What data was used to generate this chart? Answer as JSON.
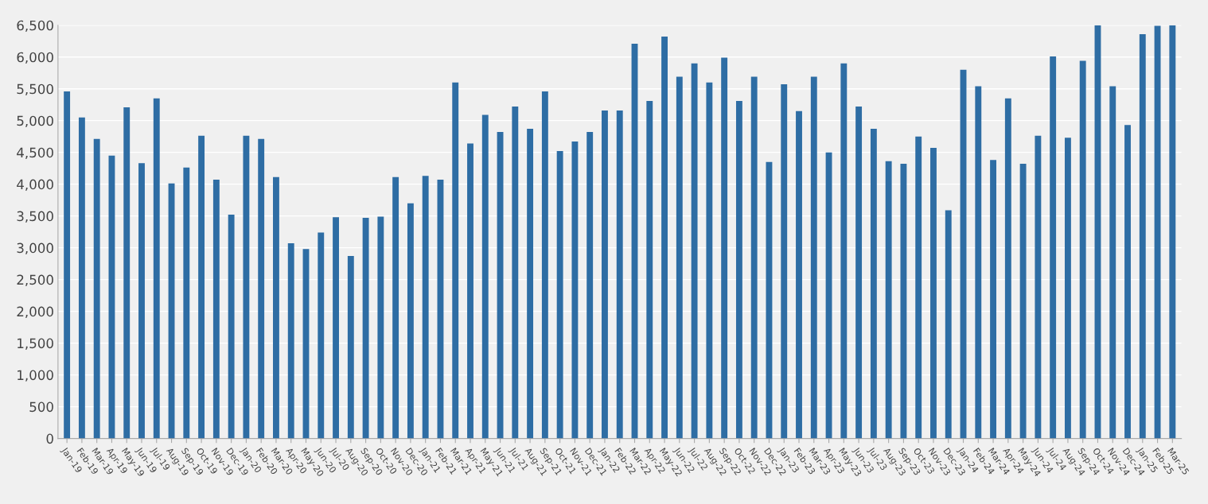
{
  "chart_data": {
    "type": "bar",
    "categories": [
      "Jan-19",
      "Feb-19",
      "Mar-19",
      "Apr-19",
      "May-19",
      "Jun-19",
      "Jul-19",
      "Aug-19",
      "Sep-19",
      "Oct-19",
      "Nov-19",
      "Dec-19",
      "Jan-20",
      "Feb-20",
      "Mar-20",
      "Apr-20",
      "May-20",
      "Jun-20",
      "Jul-20",
      "Aug-20",
      "Sep-20",
      "Oct-20",
      "Nov-20",
      "Dec-20",
      "Jan-21",
      "Feb-21",
      "Mar-21",
      "Apr-21",
      "May-21",
      "Jun-21",
      "Jul-21",
      "Aug-21",
      "Sep-21",
      "Oct-21",
      "Nov-21",
      "Dec-21",
      "Jan-22",
      "Feb-22",
      "Mar-22",
      "Apr-22",
      "May-22",
      "Jun-22",
      "Jul-22",
      "Aug-22",
      "Sep-22",
      "Oct-22",
      "Nov-22",
      "Dec-22",
      "Jan-23",
      "Feb-23",
      "Mar-23",
      "Apr-23",
      "May-23",
      "Jun-23",
      "Jul-23",
      "Aug-23",
      "Sep-23",
      "Oct-23",
      "Nov-23",
      "Dec-23",
      "Jan-24",
      "Feb-24",
      "Mar-24",
      "Apr-24",
      "May-24",
      "Jun-24",
      "Jul-24",
      "Aug-24",
      "Sep-24",
      "Oct-24",
      "Nov-24",
      "Dec-24",
      "Jan-25",
      "Feb-25",
      "Mar-25"
    ],
    "series": [
      {
        "color": "#2e6da4",
        "values": [
          5460,
          5050,
          4710,
          4450,
          5210,
          4330,
          5350,
          4010,
          4260,
          4760,
          4070,
          3520,
          4760,
          4710,
          4110,
          3070,
          2980,
          3240,
          3480,
          2870,
          3470,
          3490,
          4110,
          3700,
          4130,
          4070,
          5600,
          4640,
          5090,
          4820,
          5220,
          4870,
          5460,
          4520,
          4670,
          4820,
          5160,
          5160,
          6210,
          5310,
          6320,
          5690,
          5900,
          5600,
          5990,
          5310,
          5690,
          4350,
          5570,
          5150,
          5690,
          4500,
          5900,
          5220,
          4870,
          4360,
          4320,
          4750,
          4570,
          3590,
          5800,
          5540,
          4380,
          5350,
          4320,
          4760,
          6010,
          4730,
          5940,
          6500,
          5540,
          4930,
          6360,
          6490,
          6500
        ]
      }
    ],
    "ylim": [
      0,
      6500
    ],
    "yticks": [
      0,
      {
        "value": 500,
        "label": "500"
      },
      {
        "value": 1000,
        "label": "1,000"
      },
      {
        "value": 1500,
        "label": "1,500"
      },
      {
        "value": 2000,
        "label": "2,000"
      },
      {
        "value": 2500,
        "label": "2,500"
      },
      {
        "value": 3000,
        "label": "3,000"
      },
      {
        "value": 3500,
        "label": "3,500"
      },
      {
        "value": 4000,
        "label": "4,000"
      },
      {
        "value": 4500,
        "label": "4,500"
      },
      {
        "value": 5000,
        "label": "5,000"
      },
      {
        "value": 5500,
        "label": "5,500"
      },
      {
        "value": 6000,
        "label": "6,000"
      },
      {
        "value": 6500,
        "label": "6,500"
      }
    ],
    "grid": "y",
    "legend": false
  }
}
